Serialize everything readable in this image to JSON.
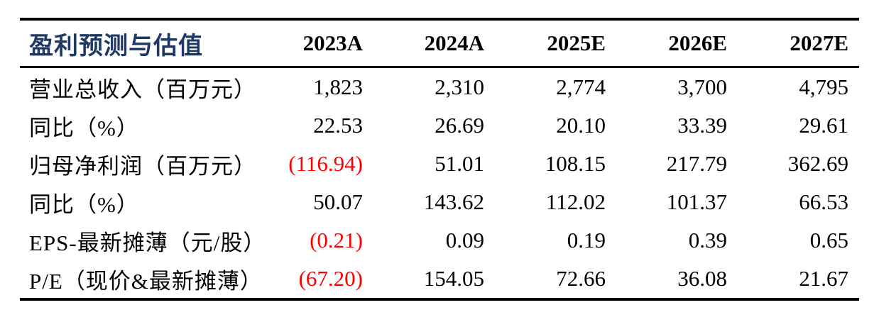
{
  "table": {
    "title": "盈利预测与估值",
    "columns": [
      "2023A",
      "2024A",
      "2025E",
      "2026E",
      "2027E"
    ],
    "rows": [
      {
        "label": "营业总收入（百万元）",
        "values": [
          "1,823",
          "2,310",
          "2,774",
          "3,700",
          "4,795"
        ]
      },
      {
        "label": "同比（%）",
        "values": [
          "22.53",
          "26.69",
          "20.10",
          "33.39",
          "29.61"
        ]
      },
      {
        "label": "归母净利润（百万元）",
        "values": [
          "(116.94)",
          "51.01",
          "108.15",
          "217.79",
          "362.69"
        ]
      },
      {
        "label": "同比（%）",
        "values": [
          "50.07",
          "143.62",
          "112.02",
          "101.37",
          "66.53"
        ]
      },
      {
        "label": "EPS-最新摊薄（元/股）",
        "values": [
          "(0.21)",
          "0.09",
          "0.19",
          "0.39",
          "0.65"
        ]
      },
      {
        "label": "P/E（现价&最新摊薄）",
        "values": [
          "(67.20)",
          "154.05",
          "72.66",
          "36.08",
          "21.67"
        ]
      }
    ],
    "colors": {
      "title": "#1f3864",
      "negative": "#ff0000",
      "text": "#000000",
      "rule": "#000000",
      "background": "#ffffff"
    }
  },
  "chart_data": {
    "type": "table",
    "title": "盈利预测与估值",
    "columns": [
      "盈利预测与估值",
      "2023A",
      "2024A",
      "2025E",
      "2026E",
      "2027E"
    ],
    "rows": [
      [
        "营业总收入（百万元）",
        "1,823",
        "2,310",
        "2,774",
        "3,700",
        "4,795"
      ],
      [
        "同比（%）",
        "22.53",
        "26.69",
        "20.10",
        "33.39",
        "29.61"
      ],
      [
        "归母净利润（百万元）",
        "(116.94)",
        "51.01",
        "108.15",
        "217.79",
        "362.69"
      ],
      [
        "同比（%）",
        "50.07",
        "143.62",
        "112.02",
        "101.37",
        "66.53"
      ],
      [
        "EPS-最新摊薄（元/股）",
        "(0.21)",
        "0.09",
        "0.19",
        "0.39",
        "0.65"
      ],
      [
        "P/E（现价&最新摊薄）",
        "(67.20)",
        "154.05",
        "72.66",
        "36.08",
        "21.67"
      ]
    ],
    "notes": "Values in parentheses are negative and rendered in red."
  }
}
